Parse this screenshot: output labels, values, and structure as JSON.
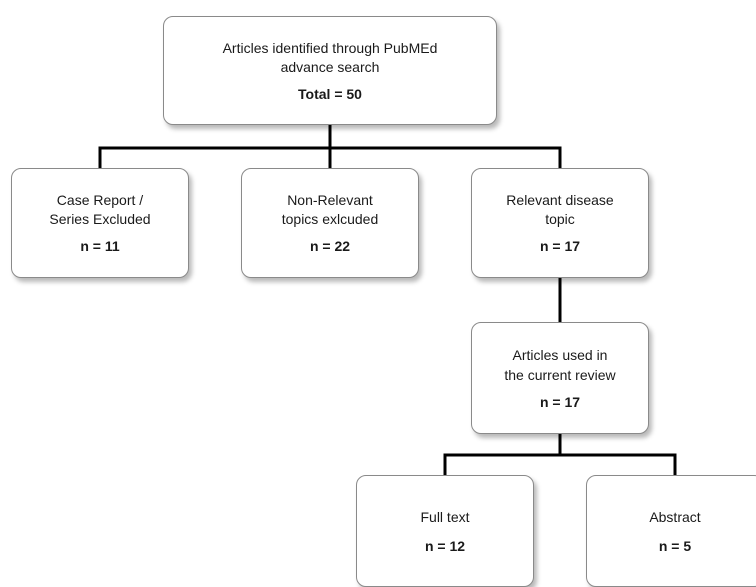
{
  "diagram": {
    "type": "flowchart",
    "root": {
      "title": "Articles identified through PubMEd\nadvance search",
      "count": "Total = 50"
    },
    "level1": [
      {
        "title": "Case Report /\nSeries Excluded",
        "count": "n = 11"
      },
      {
        "title": "Non-Relevant\ntopics exlcuded",
        "count": "n = 22"
      },
      {
        "title": "Relevant disease\ntopic",
        "count": "n = 17"
      }
    ],
    "review": {
      "title": "Articles used in\nthe current review",
      "count": "n = 17"
    },
    "level3": [
      {
        "title": "Full text",
        "count": "n = 12"
      },
      {
        "title": "Abstract",
        "count": "n = 5"
      }
    ],
    "colors": {
      "box_border": "#8a8a8a",
      "connector": "#000000",
      "background": "#ffffff"
    }
  }
}
